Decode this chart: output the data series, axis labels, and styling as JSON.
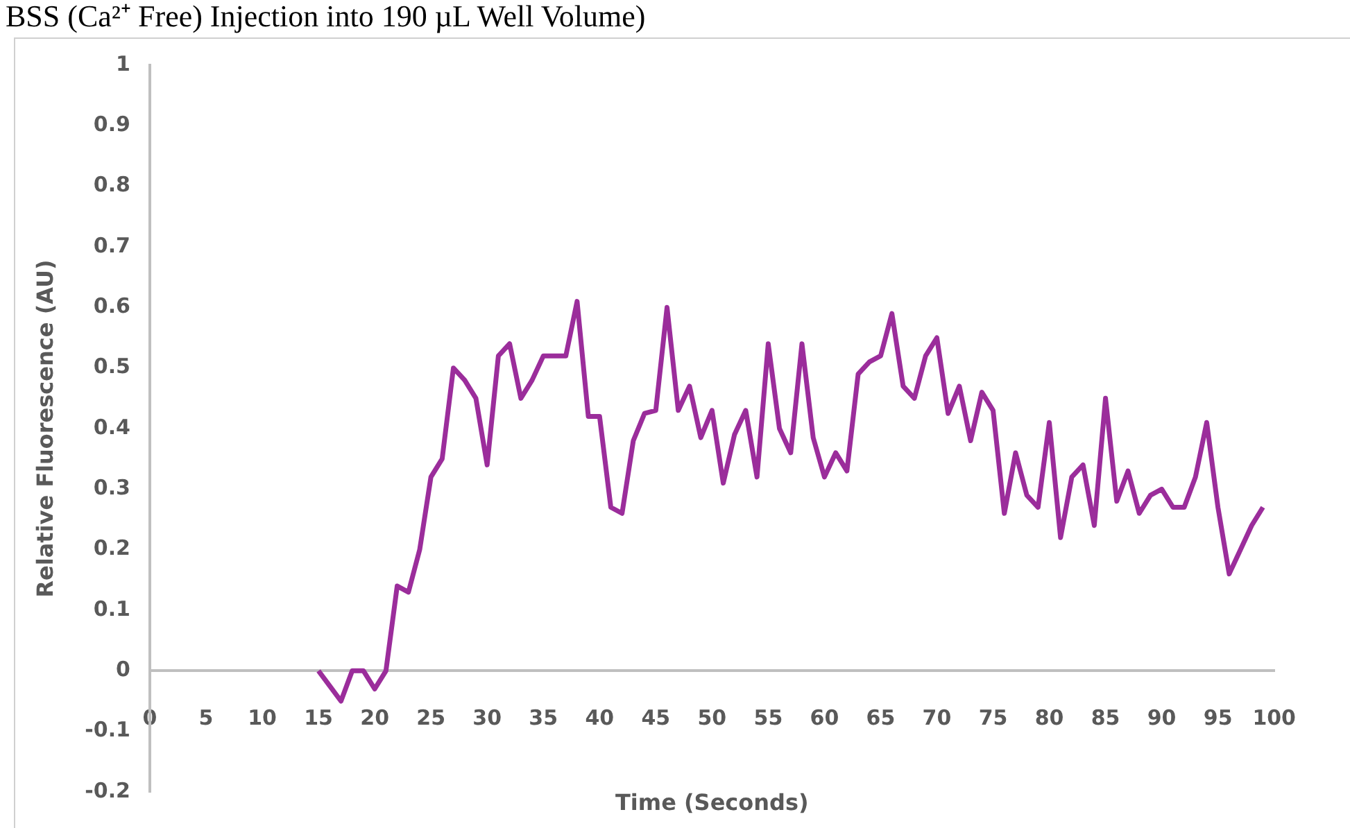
{
  "chart_data": {
    "type": "line",
    "title": "BSS (Ca²⁺ Free) Injection into 190 µL Well Volume)",
    "xlabel": "Time (Seconds)",
    "ylabel": "Relative Fluorescence (AU)",
    "x": [
      15,
      16,
      17,
      18,
      19,
      20,
      21,
      22,
      23,
      24,
      25,
      26,
      27,
      28,
      29,
      30,
      31,
      32,
      33,
      34,
      35,
      36,
      37,
      38,
      39,
      40,
      41,
      42,
      43,
      44,
      45,
      46,
      47,
      48,
      49,
      50,
      51,
      52,
      53,
      54,
      55,
      56,
      57,
      58,
      59,
      60,
      61,
      62,
      63,
      64,
      65,
      66,
      67,
      68,
      69,
      70,
      71,
      72,
      73,
      74,
      75,
      76,
      77,
      78,
      79,
      80,
      81,
      82,
      83,
      84,
      85,
      86,
      87,
      88,
      89,
      90,
      91,
      92,
      93,
      94,
      95,
      96,
      97,
      98,
      99
    ],
    "series": [
      {
        "color": "#9b2d9b",
        "values": [
          0,
          -0.025,
          -0.05,
          0,
          0,
          -0.03,
          0,
          0.14,
          0.13,
          0.2,
          0.32,
          0.35,
          0.5,
          0.48,
          0.45,
          0.34,
          0.52,
          0.54,
          0.45,
          0.48,
          0.52,
          0.52,
          0.52,
          0.61,
          0.42,
          0.42,
          0.27,
          0.26,
          0.38,
          0.425,
          0.43,
          0.6,
          0.43,
          0.47,
          0.385,
          0.43,
          0.31,
          0.39,
          0.43,
          0.32,
          0.54,
          0.4,
          0.36,
          0.54,
          0.385,
          0.32,
          0.36,
          0.33,
          0.49,
          0.51,
          0.52,
          0.59,
          0.47,
          0.45,
          0.52,
          0.55,
          0.425,
          0.47,
          0.38,
          0.46,
          0.43,
          0.26,
          0.36,
          0.29,
          0.27,
          0.41,
          0.22,
          0.32,
          0.34,
          0.24,
          0.45,
          0.28,
          0.33,
          0.26,
          0.29,
          0.3,
          0.27,
          0.27,
          0.32,
          0.41,
          0.27,
          0.16,
          0.2,
          0.24,
          0.27
        ]
      }
    ],
    "xlim": [
      0,
      100
    ],
    "xticks": [
      0,
      5,
      10,
      15,
      20,
      25,
      30,
      35,
      40,
      45,
      50,
      55,
      60,
      65,
      70,
      75,
      80,
      85,
      90,
      95,
      100
    ],
    "ylim": [
      -0.2,
      1
    ],
    "yticks": [
      -0.2,
      -0.1,
      0,
      0.1,
      0.2,
      0.3,
      0.4,
      0.5,
      0.6,
      0.7,
      0.8,
      0.9,
      1
    ],
    "grid": false,
    "legend": false,
    "marker": "none",
    "line_style": "solid"
  }
}
